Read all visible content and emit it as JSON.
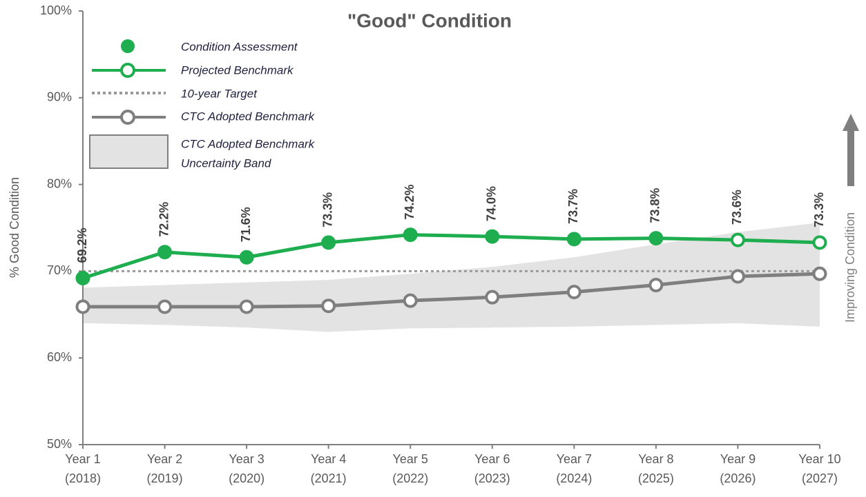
{
  "chart_data": {
    "type": "line",
    "title": "\"Good\" Condition",
    "ylabel": "% Good Condition",
    "annotation": "Improving Condition",
    "categories": [
      [
        "Year 1",
        "(2018)"
      ],
      [
        "Year 2",
        "(2019)"
      ],
      [
        "Year 3",
        "(2020)"
      ],
      [
        "Year 4",
        "(2021)"
      ],
      [
        "Year 5",
        "(2022)"
      ],
      [
        "Year 6",
        "(2023)"
      ],
      [
        "Year 7",
        "(2024)"
      ],
      [
        "Year 8",
        "(2025)"
      ],
      [
        "Year 9",
        "(2026)"
      ],
      [
        "Year 10",
        "(2027)"
      ]
    ],
    "ylim": [
      50,
      100
    ],
    "yticks": [
      {
        "value": 50,
        "label": "50%"
      },
      {
        "value": 60,
        "label": "60%"
      },
      {
        "value": 70,
        "label": "70%"
      },
      {
        "value": 80,
        "label": "80%"
      },
      {
        "value": 90,
        "label": "90%"
      },
      {
        "value": 100,
        "label": "100%"
      }
    ],
    "series": [
      {
        "name": "Condition Assessment",
        "color": "#1fae4f",
        "marker": "filled",
        "line": false,
        "values": [
          69.2,
          72.2,
          71.6,
          73.3,
          74.2,
          74.0,
          73.7,
          73.8,
          null,
          null
        ]
      },
      {
        "name": "Projected Benchmark",
        "color": "#1fae4f",
        "marker": "open",
        "line": true,
        "values": [
          69.2,
          72.2,
          71.6,
          73.3,
          74.2,
          74.0,
          73.7,
          73.8,
          73.6,
          73.3
        ],
        "value_labels": [
          "69.2%",
          "72.2%",
          "71.6%",
          "73.3%",
          "74.2%",
          "74.0%",
          "73.7%",
          "73.8%",
          "73.6%",
          "73.3%"
        ]
      },
      {
        "name": "CTC Adopted Benchmark",
        "color": "#7f7f7f",
        "marker": "open",
        "line": true,
        "values": [
          65.9,
          65.9,
          65.9,
          66.0,
          66.6,
          67.0,
          67.6,
          68.4,
          69.4,
          69.7
        ]
      }
    ],
    "target": {
      "name": "10-year Target",
      "value": 70,
      "color": "#999999"
    },
    "band": {
      "name": [
        "CTC Adopted Benchmark",
        "Uncertainty Band"
      ],
      "color": "#e3e3e3",
      "upper": [
        68.1,
        68.4,
        68.7,
        69.0,
        69.7,
        70.5,
        71.6,
        73.1,
        74.5,
        75.6
      ],
      "lower": [
        64.0,
        63.8,
        63.5,
        63.0,
        63.4,
        63.5,
        63.6,
        63.8,
        64.0,
        63.6
      ]
    }
  }
}
